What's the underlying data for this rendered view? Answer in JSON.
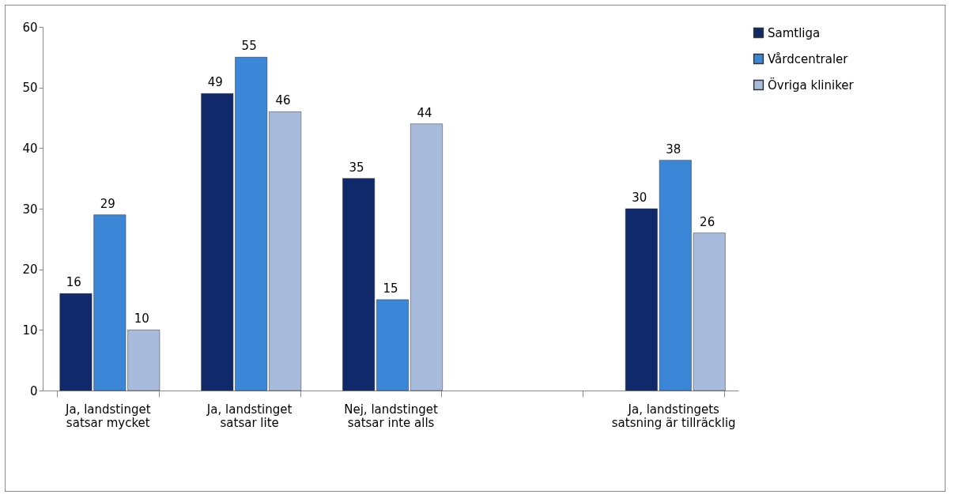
{
  "chart_data": {
    "type": "bar",
    "categories": [
      "Ja, landstinget satsar mycket",
      "Ja, landstinget satsar lite",
      "Nej, landstinget satsar inte alls",
      null,
      "Ja,  landstingets satsning är tillräcklig"
    ],
    "series": [
      {
        "name": "Samtliga",
        "color": "#10296a",
        "values": [
          16,
          49,
          35,
          null,
          30
        ]
      },
      {
        "name": "Vårdcentraler",
        "color": "#3b86d6",
        "values": [
          29,
          55,
          15,
          null,
          38
        ]
      },
      {
        "name": "Övriga kliniker",
        "color": "#a9bbdd",
        "values": [
          10,
          46,
          44,
          null,
          26
        ]
      }
    ],
    "ylim": [
      0,
      60
    ],
    "yticks": [
      0,
      10,
      20,
      30,
      40,
      50,
      60
    ],
    "data_labels": true,
    "grid": false,
    "legend": "right"
  }
}
